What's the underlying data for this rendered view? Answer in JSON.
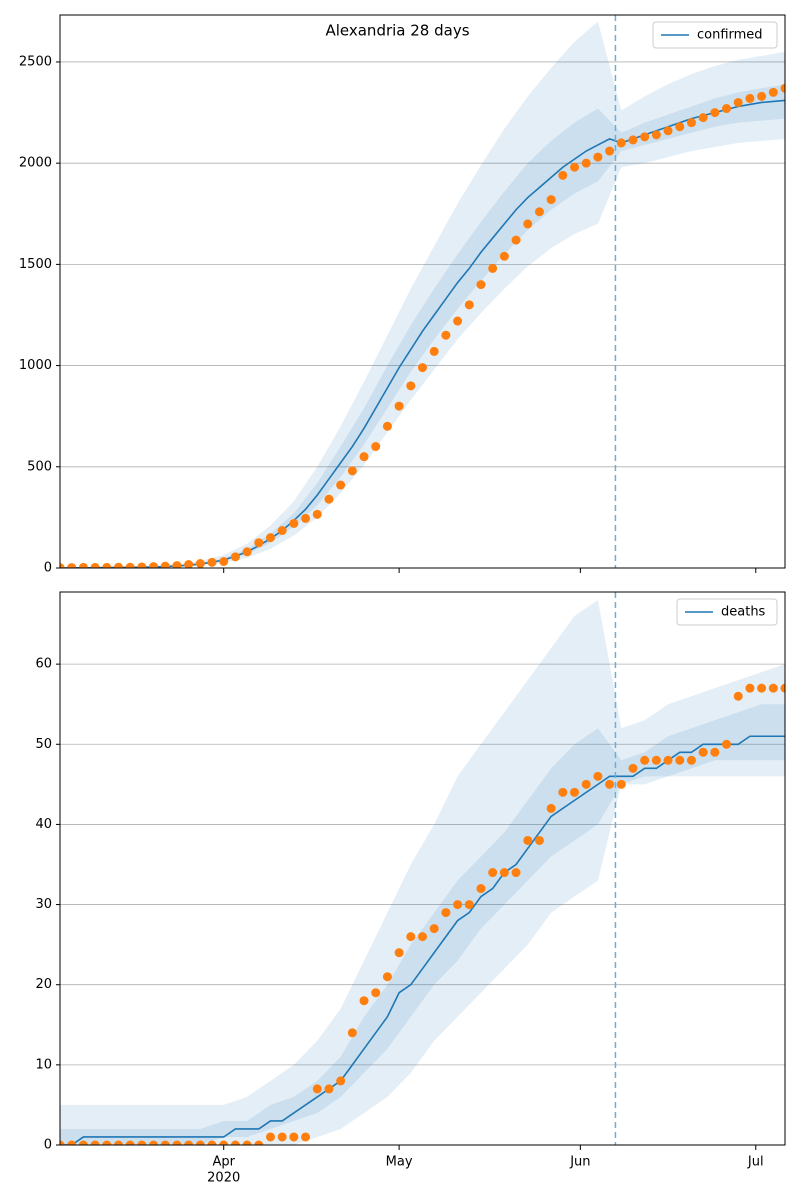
{
  "chart_data": [
    {
      "type": "line",
      "title": "Alexandria 28 days",
      "legend": "upper right",
      "grid": true,
      "xlim": [
        0,
        124
      ],
      "ylim": [
        0,
        2732
      ],
      "yticks": [
        0,
        500,
        1000,
        1500,
        2000,
        2500
      ],
      "vline_x": 95,
      "vline_color": "#6baed6",
      "x": [
        0,
        2,
        4,
        6,
        8,
        10,
        12,
        14,
        16,
        18,
        20,
        22,
        24,
        26,
        28,
        30,
        32,
        34,
        36,
        38,
        40,
        42,
        44,
        46,
        48,
        50,
        52,
        54,
        56,
        58,
        60,
        62,
        64,
        66,
        68,
        70,
        72,
        74,
        76,
        78,
        80,
        82,
        84,
        86,
        88,
        90,
        92,
        94,
        96,
        98,
        100,
        102,
        104,
        106,
        108,
        110,
        112,
        114,
        116,
        118,
        120,
        122,
        124
      ],
      "series": [
        {
          "name": "confirmed",
          "color": "#1f77b4",
          "values": [
            0,
            1,
            1,
            1,
            2,
            2,
            3,
            4,
            5,
            7,
            10,
            14,
            20,
            28,
            40,
            58,
            80,
            110,
            145,
            185,
            235,
            290,
            360,
            440,
            520,
            600,
            690,
            790,
            890,
            990,
            1080,
            1170,
            1250,
            1330,
            1410,
            1480,
            1560,
            1630,
            1700,
            1770,
            1830,
            1880,
            1930,
            1980,
            2020,
            2060,
            2090,
            2120,
            2100,
            2120,
            2140,
            2160,
            2180,
            2200,
            2220,
            2235,
            2250,
            2265,
            2280,
            2290,
            2300,
            2305,
            2310
          ]
        }
      ],
      "observed": {
        "color": "#ff7f0e",
        "values": [
          2,
          2,
          3,
          3,
          3,
          4,
          4,
          5,
          7,
          9,
          12,
          17,
          22,
          28,
          32,
          55,
          80,
          125,
          150,
          185,
          220,
          245,
          265,
          340,
          410,
          480,
          550,
          600,
          700,
          800,
          900,
          990,
          1070,
          1150,
          1220,
          1300,
          1400,
          1480,
          1540,
          1620,
          1700,
          1760,
          1820,
          1940,
          1980,
          2000,
          2030,
          2060,
          2100,
          2115,
          2130,
          2140,
          2160,
          2180,
          2200,
          2225,
          2250,
          2270,
          2300,
          2320,
          2330,
          2350,
          2370
        ]
      },
      "band_x": [
        0,
        4,
        8,
        12,
        16,
        20,
        24,
        28,
        32,
        36,
        40,
        44,
        48,
        52,
        56,
        60,
        64,
        68,
        72,
        76,
        80,
        84,
        88,
        92,
        96,
        100,
        104,
        108,
        112,
        116,
        120,
        124
      ],
      "band_color": "#1f77b4",
      "bands": [
        {
          "lower": [
            0,
            0,
            0,
            0,
            2,
            5,
            12,
            25,
            50,
            95,
            160,
            250,
            370,
            510,
            670,
            830,
            980,
            1130,
            1260,
            1380,
            1490,
            1580,
            1650,
            1700,
            1980,
            2000,
            2030,
            2060,
            2080,
            2100,
            2110,
            2120
          ],
          "upper": [
            5,
            5,
            8,
            10,
            12,
            18,
            35,
            65,
            120,
            210,
            330,
            500,
            700,
            920,
            1150,
            1380,
            1590,
            1800,
            1990,
            2170,
            2330,
            2470,
            2600,
            2700,
            2260,
            2330,
            2390,
            2440,
            2480,
            2510,
            2530,
            2550
          ]
        },
        {
          "lower": [
            0,
            1,
            1,
            2,
            4,
            8,
            17,
            33,
            68,
            125,
            205,
            310,
            450,
            610,
            790,
            970,
            1130,
            1280,
            1420,
            1550,
            1670,
            1770,
            1850,
            1910,
            2060,
            2090,
            2120,
            2150,
            2180,
            2200,
            2210,
            2220
          ],
          "upper": [
            1,
            2,
            3,
            4,
            6,
            12,
            24,
            48,
            95,
            170,
            270,
            420,
            600,
            790,
            1000,
            1200,
            1380,
            1550,
            1710,
            1860,
            2000,
            2110,
            2200,
            2270,
            2150,
            2200,
            2240,
            2280,
            2320,
            2350,
            2370,
            2390
          ]
        }
      ]
    },
    {
      "type": "line",
      "legend": "upper right",
      "grid": true,
      "xlim": [
        0,
        124
      ],
      "ylim": [
        0,
        69
      ],
      "yticks": [
        0,
        10,
        20,
        30,
        40,
        50,
        60
      ],
      "vline_x": 95,
      "vline_color": "#6baed6",
      "xticks": [
        {
          "value": 28,
          "label": "Apr"
        },
        {
          "value": 58,
          "label": "May"
        },
        {
          "value": 89,
          "label": "Jun"
        },
        {
          "value": 119,
          "label": "Jul"
        }
      ],
      "x_year_label": "2020",
      "x": [
        0,
        2,
        4,
        6,
        8,
        10,
        12,
        14,
        16,
        18,
        20,
        22,
        24,
        26,
        28,
        30,
        32,
        34,
        36,
        38,
        40,
        42,
        44,
        46,
        48,
        50,
        52,
        54,
        56,
        58,
        60,
        62,
        64,
        66,
        68,
        70,
        72,
        74,
        76,
        78,
        80,
        82,
        84,
        86,
        88,
        90,
        92,
        94,
        96,
        98,
        100,
        102,
        104,
        106,
        108,
        110,
        112,
        114,
        116,
        118,
        120,
        122,
        124
      ],
      "series": [
        {
          "name": "deaths",
          "color": "#1f77b4",
          "values": [
            0,
            0,
            1,
            1,
            1,
            1,
            1,
            1,
            1,
            1,
            1,
            1,
            1,
            1,
            1,
            2,
            2,
            2,
            3,
            3,
            4,
            5,
            6,
            7,
            8,
            10,
            12,
            14,
            16,
            19,
            20,
            22,
            24,
            26,
            28,
            29,
            31,
            32,
            34,
            35,
            37,
            39,
            41,
            42,
            43,
            44,
            45,
            46,
            46,
            46,
            47,
            47,
            48,
            49,
            49,
            50,
            50,
            50,
            50,
            51,
            51,
            51,
            51
          ]
        }
      ],
      "observed": {
        "color": "#ff7f0e",
        "values": [
          0,
          0,
          0,
          0,
          0,
          0,
          0,
          0,
          0,
          0,
          0,
          0,
          0,
          0,
          0,
          0,
          0,
          0,
          1,
          1,
          1,
          1,
          7,
          7,
          8,
          14,
          18,
          19,
          21,
          24,
          26,
          26,
          27,
          29,
          30,
          30,
          32,
          34,
          34,
          34,
          38,
          38,
          42,
          44,
          44,
          45,
          46,
          45,
          45,
          47,
          48,
          48,
          48,
          48,
          48,
          49,
          49,
          50,
          56,
          57,
          57,
          57,
          57
        ]
      },
      "band_x": [
        0,
        4,
        8,
        12,
        16,
        20,
        24,
        28,
        32,
        36,
        40,
        44,
        48,
        52,
        56,
        60,
        64,
        68,
        72,
        76,
        80,
        84,
        88,
        92,
        96,
        100,
        104,
        108,
        112,
        116,
        120,
        124
      ],
      "band_color": "#1f77b4",
      "bands": [
        {
          "lower": [
            0,
            0,
            0,
            0,
            0,
            0,
            0,
            0,
            0,
            0,
            0,
            1,
            2,
            4,
            6,
            9,
            13,
            16,
            19,
            22,
            25,
            29,
            31,
            33,
            45,
            45,
            46,
            46,
            46,
            46,
            46,
            46
          ],
          "upper": [
            5,
            5,
            5,
            5,
            5,
            5,
            5,
            5,
            6,
            8,
            10,
            13,
            17,
            23,
            29,
            35,
            40,
            46,
            50,
            54,
            58,
            62,
            66,
            68,
            52,
            53,
            55,
            56,
            57,
            58,
            59,
            60
          ]
        },
        {
          "lower": [
            0,
            0,
            0,
            0,
            0,
            0,
            0,
            1,
            1,
            2,
            3,
            4,
            6,
            9,
            12,
            16,
            20,
            23,
            27,
            30,
            33,
            36,
            38,
            40,
            45,
            46,
            46,
            47,
            48,
            48,
            48,
            48
          ],
          "upper": [
            2,
            2,
            2,
            2,
            2,
            2,
            2,
            3,
            3,
            5,
            6,
            8,
            11,
            16,
            20,
            25,
            29,
            33,
            36,
            39,
            43,
            47,
            50,
            52,
            48,
            49,
            51,
            52,
            53,
            54,
            55,
            55
          ]
        }
      ]
    }
  ]
}
